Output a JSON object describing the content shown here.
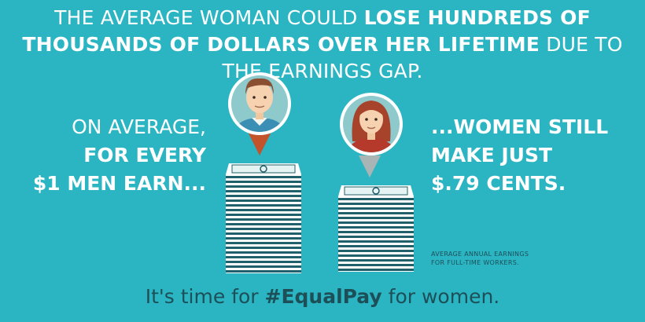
{
  "headline": {
    "part1": "THE AVERAGE WOMAN COULD ",
    "bold": "LOSE HUNDREDS OF THOUSANDS OF DOLLARS OVER HER LIFETIME",
    "part2": " DUE TO THE EARNINGS GAP."
  },
  "left_text": {
    "line1": "ON AVERAGE,",
    "line2": "FOR EVERY",
    "line3": "$1 MEN EARN..."
  },
  "right_text": {
    "line1": "...WOMEN STILL",
    "line2": "MAKE JUST",
    "line3": "$.79 CENTS."
  },
  "footnote": {
    "line1": "AVERAGE ANNUAL EARNINGS",
    "line2": "FOR FULL-TIME WORKERS."
  },
  "tagline": {
    "part1": "It's time for ",
    "bold": "#EqualPay",
    "part2": " for women."
  },
  "icons": {
    "man": "man-avatar-icon",
    "woman": "woman-avatar-icon",
    "money": "money-stack-icon"
  },
  "colors": {
    "background": "#2bb5c3",
    "text_light": "#ffffff",
    "text_dark": "#1d4f58",
    "pin_man": "#c2532a",
    "pin_woman": "#a9b5b4"
  }
}
